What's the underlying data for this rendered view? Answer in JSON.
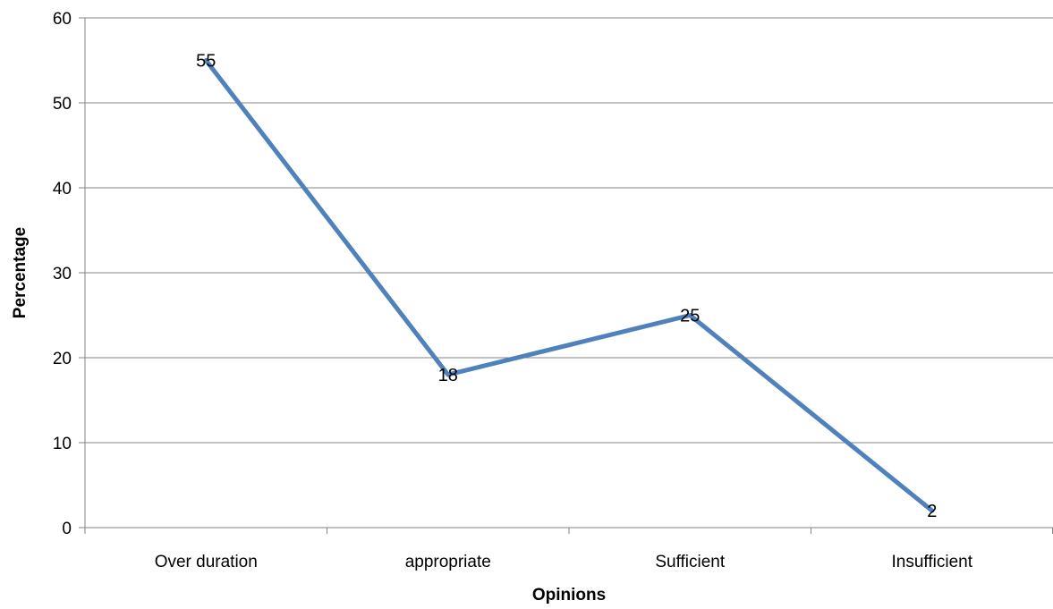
{
  "chart_data": {
    "type": "line",
    "title": "",
    "xlabel": "Opinions",
    "ylabel": "Percentage",
    "categories": [
      "Over duration",
      "appropriate",
      "Sufficient",
      "Insufficient"
    ],
    "series": [
      {
        "values": [
          55,
          18,
          25,
          2
        ],
        "color": "#4F81BD"
      }
    ],
    "data_labels": [
      "55",
      "18",
      "25",
      "2"
    ],
    "ylim": [
      0,
      60
    ],
    "yticks": [
      0,
      10,
      20,
      30,
      40,
      50,
      60
    ],
    "grid": true,
    "gridline_color": "#868686",
    "legend": "none"
  }
}
